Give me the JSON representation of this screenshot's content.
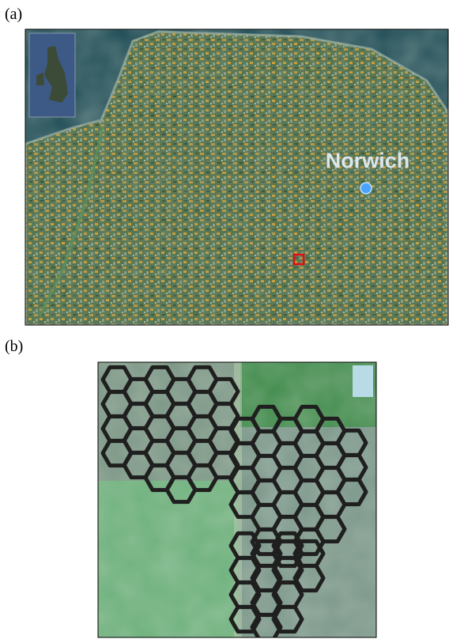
{
  "panel_a": {
    "label": "(a)",
    "place_label": "Norwich"
  },
  "panel_b": {
    "label": "(b)"
  }
}
